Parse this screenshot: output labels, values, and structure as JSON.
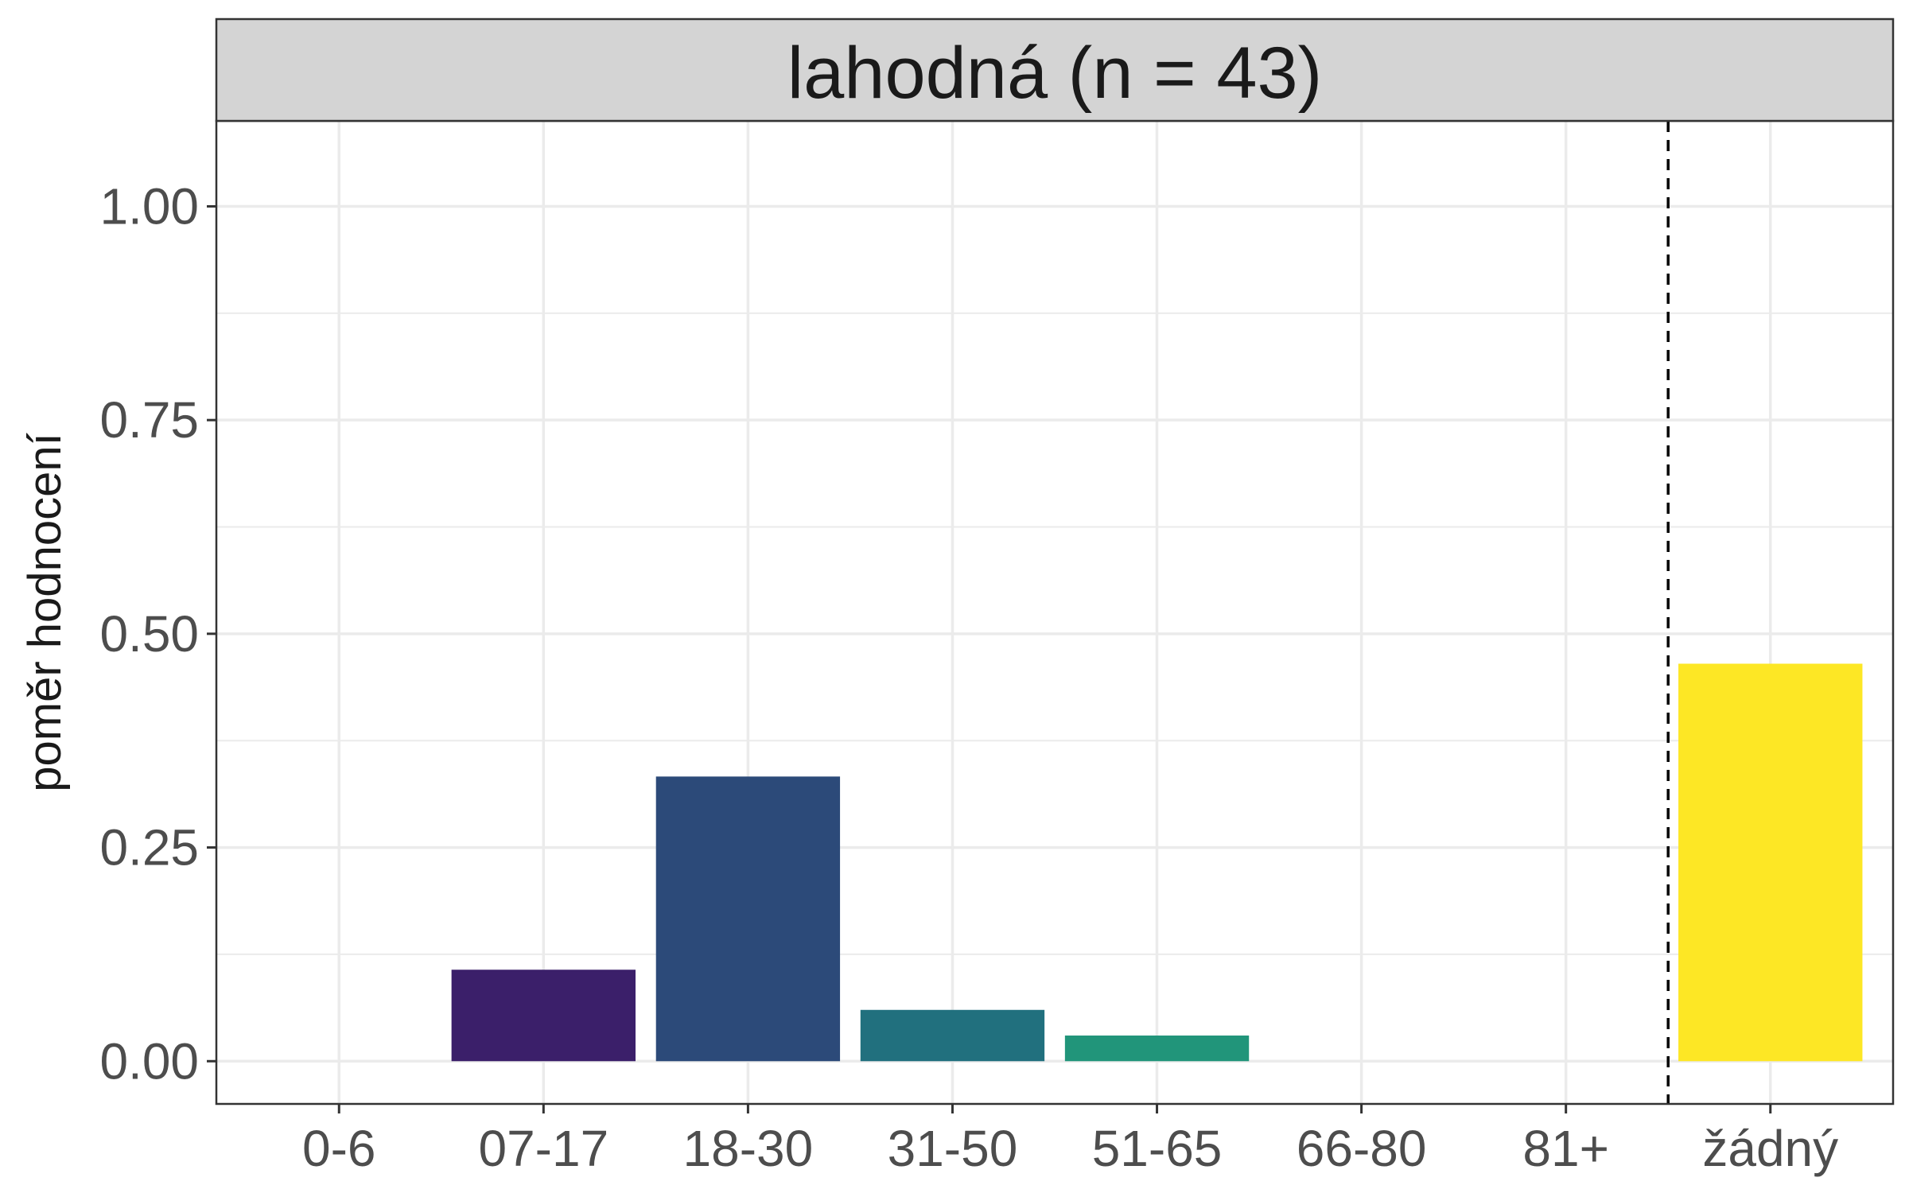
{
  "chart_data": {
    "type": "bar",
    "facet_title": "lahodná (n = 43)",
    "ylabel": "poměr hodnocení",
    "xlabel": "",
    "categories": [
      "0-6",
      "07-17",
      "18-30",
      "31-50",
      "51-65",
      "66-80",
      "81+",
      "žádný"
    ],
    "values": [
      0,
      0.107,
      0.333,
      0.06,
      0.03,
      0,
      0,
      0.465
    ],
    "bar_colors": [
      "#440154",
      "#3B1F6A",
      "#2C4A79",
      "#21707E",
      "#21957A",
      "#5EC962",
      "#ADDC30",
      "#FDE725"
    ],
    "ylim": [
      -0.05,
      1.1
    ],
    "y_ticks": [
      0,
      0.25,
      0.5,
      0.75,
      1
    ],
    "y_tick_labels": [
      "0.00",
      "0.25",
      "0.50",
      "0.75",
      "1.00"
    ],
    "reference_line": {
      "between": [
        "81+",
        "žádný"
      ],
      "style": "dashed",
      "color": "#000000"
    },
    "grid": true,
    "theme": {
      "panel_border": "#333333",
      "strip_fill": "#D4D4D4",
      "grid_color": "#EBEBEB"
    }
  }
}
